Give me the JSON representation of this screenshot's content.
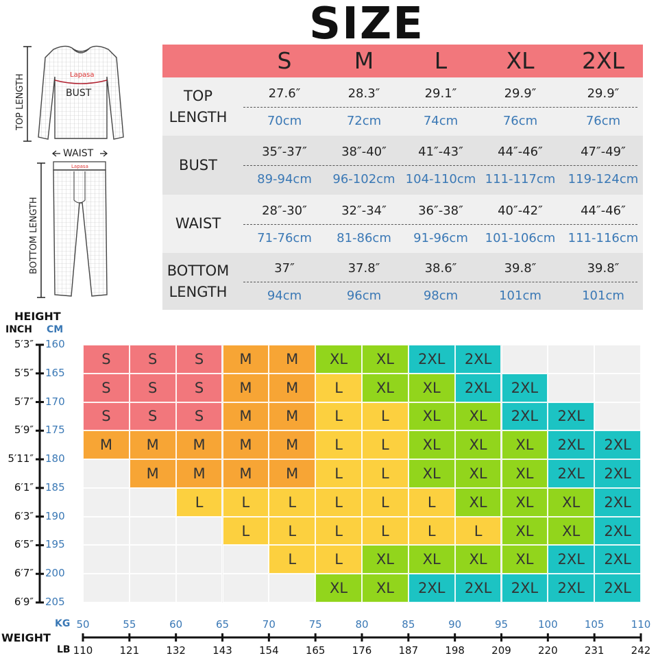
{
  "title": "SIZE",
  "illustration": {
    "top_length": "TOP LENGTH",
    "bust": "BUST",
    "brand": "Lapasa",
    "waist": "WAIST",
    "bottom_length": "BOTTOM LENGTH"
  },
  "size_table": {
    "sizes": [
      "S",
      "M",
      "L",
      "XL",
      "2XL"
    ],
    "header_color": "#f2777c",
    "rows": [
      {
        "label": "TOP\nLENGTH",
        "inch": [
          "27.6″",
          "28.3″",
          "29.1″",
          "29.9″",
          "29.9″"
        ],
        "cm": [
          "70cm",
          "72cm",
          "74cm",
          "76cm",
          "76cm"
        ]
      },
      {
        "label": "BUST",
        "inch": [
          "35″-37″",
          "38″-40″",
          "41″-43″",
          "44″-46″",
          "47″-49″"
        ],
        "cm": [
          "89-94cm",
          "96-102cm",
          "104-110cm",
          "111-117cm",
          "119-124cm"
        ]
      },
      {
        "label": "WAIST",
        "inch": [
          "28″-30″",
          "32″-34″",
          "36″-38″",
          "40″-42″",
          "44″-46″"
        ],
        "cm": [
          "71-76cm",
          "81-86cm",
          "91-96cm",
          "101-106cm",
          "111-116cm"
        ]
      },
      {
        "label": "BOTTOM\nLENGTH",
        "inch": [
          "37″",
          "37.8″",
          "38.6″",
          "39.8″",
          "39.8″"
        ],
        "cm": [
          "94cm",
          "96cm",
          "98cm",
          "101cm",
          "101cm"
        ]
      }
    ]
  },
  "chart": {
    "height_label": "HEIGHT",
    "inch_label": "INCH",
    "cm_label": "CM",
    "height_inches": [
      "5′3″",
      "5′5″",
      "5′7″",
      "5′9″",
      "5′11″",
      "6′1″",
      "6′3″",
      "6′5″",
      "6′7″",
      "6′9″"
    ],
    "height_cm": [
      "160",
      "165",
      "170",
      "175",
      "180",
      "185",
      "190",
      "195",
      "200",
      "205"
    ],
    "weight_label": "WEIGHT",
    "kg_label": "KG",
    "lb_label": "LB",
    "weight_kg": [
      "50",
      "55",
      "60",
      "65",
      "70",
      "75",
      "80",
      "85",
      "90",
      "95",
      "100",
      "105",
      "110"
    ],
    "weight_lb": [
      "110",
      "121",
      "132",
      "143",
      "154",
      "165",
      "176",
      "187",
      "198",
      "209",
      "220",
      "231",
      "242"
    ],
    "colors": {
      "S": "#f2777c",
      "M": "#f7a535",
      "L": "#fcd03f",
      "XL": "#92d51c",
      "2XL": "#1cc3c3",
      "": "#f0f0f0"
    },
    "grid": [
      [
        "S",
        "S",
        "S",
        "M",
        "M",
        "XL",
        "XL",
        "2XL",
        "2XL",
        "",
        "",
        ""
      ],
      [
        "S",
        "S",
        "S",
        "M",
        "M",
        "L",
        "XL",
        "XL",
        "2XL",
        "2XL",
        "",
        ""
      ],
      [
        "S",
        "S",
        "S",
        "M",
        "M",
        "L",
        "L",
        "XL",
        "XL",
        "2XL",
        "2XL",
        ""
      ],
      [
        "M",
        "M",
        "M",
        "M",
        "M",
        "L",
        "L",
        "XL",
        "XL",
        "XL",
        "2XL",
        "2XL"
      ],
      [
        "",
        "M",
        "M",
        "M",
        "M",
        "L",
        "L",
        "XL",
        "XL",
        "XL",
        "2XL",
        "2XL"
      ],
      [
        "",
        "",
        "L",
        "L",
        "L",
        "L",
        "L",
        "L",
        "XL",
        "XL",
        "XL",
        "2XL"
      ],
      [
        "",
        "",
        "",
        "L",
        "L",
        "L",
        "L",
        "L",
        "L",
        "XL",
        "XL",
        "2XL"
      ],
      [
        "",
        "",
        "",
        "",
        "L",
        "L",
        "XL",
        "XL",
        "XL",
        "XL",
        "2XL",
        "2XL"
      ],
      [
        "",
        "",
        "",
        "",
        "",
        "XL",
        "XL",
        "2XL",
        "2XL",
        "2XL",
        "2XL",
        "2XL"
      ]
    ]
  }
}
